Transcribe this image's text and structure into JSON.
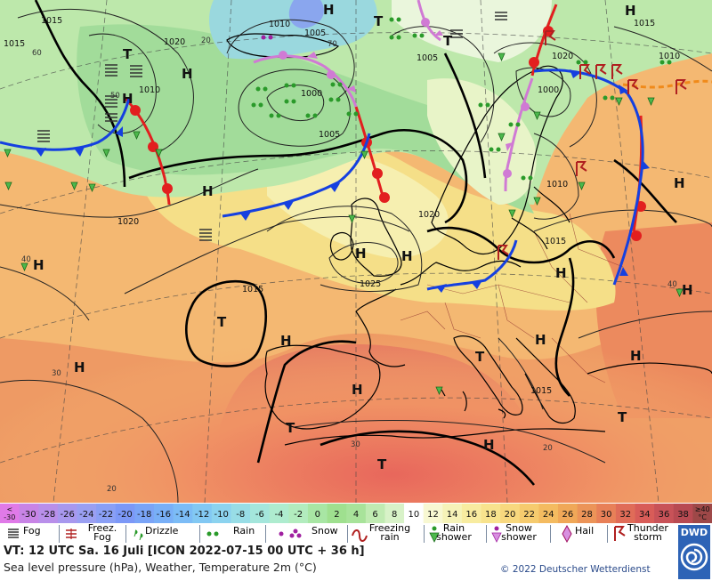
{
  "map": {
    "isobars": [
      "1015",
      "1010",
      "1005",
      "1015",
      "1020",
      "1010",
      "1020",
      "1005",
      "1000",
      "1000",
      "1005",
      "1010",
      "1015",
      "1020",
      "1010",
      "1015",
      "1025",
      "1015",
      "1015",
      "1020"
    ],
    "highs": [
      "H",
      "H",
      "H",
      "H",
      "H",
      "H",
      "H",
      "H",
      "H",
      "H",
      "H",
      "H",
      "H",
      "H",
      "H",
      "H",
      "H"
    ],
    "lows": [
      "T",
      "T",
      "T",
      "T",
      "T",
      "T",
      "T",
      "T"
    ],
    "temp_labels": [
      "20",
      "30",
      "40",
      "40",
      "60",
      "50",
      "70",
      "20",
      "20",
      "30"
    ]
  },
  "scale": {
    "labels": [
      "< -30",
      "-30",
      "-28",
      "-26",
      "-24",
      "-22",
      "-20",
      "-18",
      "-16",
      "-14",
      "-12",
      "-10",
      "-8",
      "-6",
      "-4",
      "-2",
      "0",
      "2",
      "4",
      "6",
      "8",
      "10",
      "12",
      "14",
      "16",
      "18",
      "20",
      "22",
      "24",
      "26",
      "28",
      "30",
      "32",
      "34",
      "36",
      "38",
      "≥40 °C"
    ],
    "colors": [
      "#e07ae8",
      "#c884e6",
      "#b98fea",
      "#a898ee",
      "#9a9ff2",
      "#8a9ff5",
      "#7c98f7",
      "#7aa4f7",
      "#78aff7",
      "#7cbcf6",
      "#82c8f3",
      "#8cd3ef",
      "#98dde6",
      "#a4e6dc",
      "#aeeccf",
      "#b2ecbe",
      "#a8e6a4",
      "#9fe08f",
      "#a8e39a",
      "#c0ebb2",
      "#d8f2c8",
      "#ffffff",
      "#f8f8d2",
      "#f6f3b8",
      "#f8eca0",
      "#f8e38d",
      "#f8d87e",
      "#f6cb6e",
      "#f4bb60",
      "#f0a858",
      "#ec9458",
      "#e88058",
      "#e06c58",
      "#d85c58",
      "#c85258",
      "#b84a52",
      "#9e4848"
    ]
  },
  "legend": {
    "fog": "Fog",
    "freezing_fog": "Freez. Fog",
    "drizzle": "Drizzle",
    "rain": "Rain",
    "snow": "Snow",
    "freezing_rain": "Freezing rain",
    "rain_shower": "Rain shower",
    "snow_shower": "Snow shower",
    "hail": "Hail",
    "thunderstorm": "Thunder storm"
  },
  "info": {
    "line1": "VT: 12 UTC Sa.  16 Juli [ICON 2022-07-15  00 UTC + 36 h]",
    "line2": "Sea level pressure (hPa), Weather, Temperature 2m (°C)",
    "copyright": "© 2022 Deutscher Wetterdienst",
    "logo_text": "DWD"
  }
}
